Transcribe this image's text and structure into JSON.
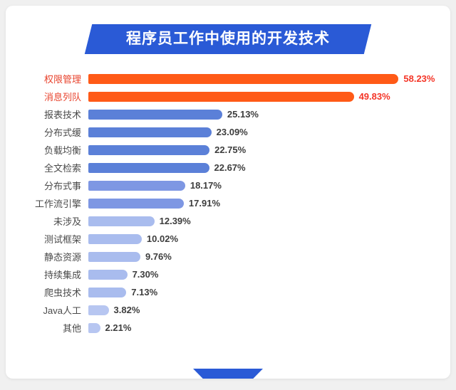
{
  "page": {
    "background": "#f0f0f0",
    "card_background": "#ffffff",
    "accent_blue": "#2a5ad6"
  },
  "header": {
    "title": "程序员工作中使用的开发技术",
    "ribbon_color": "#2a5ad6",
    "text_color": "#ffffff"
  },
  "chart_data": {
    "type": "bar",
    "orientation": "horizontal",
    "title": "程序员工作中使用的开发技术",
    "xlabel": "",
    "ylabel": "",
    "xlim": [
      0,
      65
    ],
    "grid": false,
    "legend": false,
    "categories": [
      "权限管理",
      "消息列队",
      "报表技术",
      "分布式缓",
      "负载均衡",
      "全文检索",
      "分布式事",
      "工作流引擎",
      "未涉及",
      "测试框架",
      "静态资源",
      "持续集成",
      "爬虫技术",
      "Java人工",
      "其他"
    ],
    "values": [
      58.23,
      49.83,
      25.13,
      23.09,
      22.75,
      22.67,
      18.17,
      17.91,
      12.39,
      10.02,
      9.76,
      7.3,
      7.13,
      3.82,
      2.21
    ],
    "value_labels": [
      "58.23%",
      "49.83%",
      "25.13%",
      "23.09%",
      "22.75%",
      "22.67%",
      "18.17%",
      "17.91%",
      "12.39%",
      "10.02%",
      "9.76%",
      "7.30%",
      "7.13%",
      "3.82%",
      "2.21%"
    ],
    "bar_colors": [
      "#ff5a17",
      "#ff5a17",
      "#5b80d8",
      "#5b80d8",
      "#5b80d8",
      "#5b80d8",
      "#7e97e3",
      "#7e97e3",
      "#a9bcee",
      "#a9bcee",
      "#a9bcee",
      "#a9bcee",
      "#a9bcee",
      "#b7c6f1",
      "#b7c6f1"
    ],
    "label_colors": [
      "#e8432d",
      "#e8432d",
      "#4a4a4a",
      "#4a4a4a",
      "#4a4a4a",
      "#4a4a4a",
      "#4a4a4a",
      "#4a4a4a",
      "#4a4a4a",
      "#4a4a4a",
      "#4a4a4a",
      "#4a4a4a",
      "#4a4a4a",
      "#4a4a4a",
      "#4a4a4a"
    ],
    "value_colors": [
      "#f43527",
      "#f43527",
      "#3d3d3d",
      "#3d3d3d",
      "#3d3d3d",
      "#3d3d3d",
      "#3d3d3d",
      "#3d3d3d",
      "#3d3d3d",
      "#3d3d3d",
      "#3d3d3d",
      "#3d3d3d",
      "#3d3d3d",
      "#3d3d3d",
      "#3d3d3d"
    ]
  }
}
